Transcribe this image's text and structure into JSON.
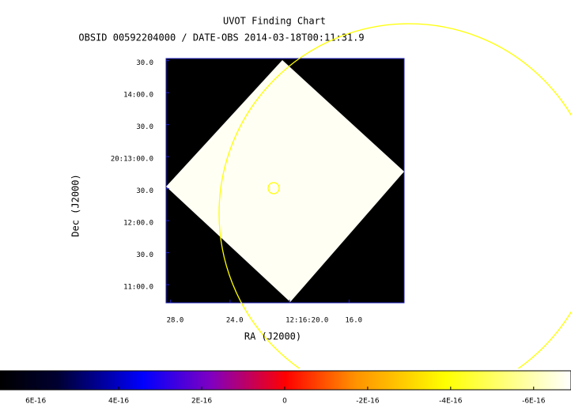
{
  "chart_data": {
    "type": "image",
    "title": "UVOT Finding Chart",
    "subtitle": "OBSID 00592204000 / DATE-OBS 2014-03-18T00:11:31.9",
    "xlabel": "RA (J2000)",
    "ylabel": "Dec (J2000)",
    "xlim": [
      28.3,
      12.3
    ],
    "xticks": [
      {
        "value": 28,
        "label": "28.0"
      },
      {
        "value": 24,
        "label": "24.0"
      },
      {
        "value": 20,
        "label": "12:16:20.0"
      },
      {
        "value": 16,
        "label": "16.0"
      }
    ],
    "ylim": [
      643,
      872
    ],
    "yticks": [
      {
        "value": 870,
        "label": "30.0"
      },
      {
        "value": 840,
        "label": "14:00.0"
      },
      {
        "value": 810,
        "label": "30.0"
      },
      {
        "value": 780,
        "label": "20:13:00.0"
      },
      {
        "value": 750,
        "label": "30.0"
      },
      {
        "value": 720,
        "label": "12:00.0"
      },
      {
        "value": 690,
        "label": "30.0"
      },
      {
        "value": 660,
        "label": "11:00.0"
      }
    ],
    "clim": [
      6.86e-16,
      -6.9e-16
    ],
    "cticks": [
      {
        "value": 6e-16,
        "label": "6E-16"
      },
      {
        "value": 4e-16,
        "label": "4E-16"
      },
      {
        "value": 2e-16,
        "label": "2E-16"
      },
      0,
      {
        "value": -2e-16,
        "label": "-2E-16"
      },
      {
        "value": -4e-16,
        "label": "-4E-16"
      },
      {
        "value": -6e-16,
        "label": "-6E-16"
      }
    ]
  }
}
